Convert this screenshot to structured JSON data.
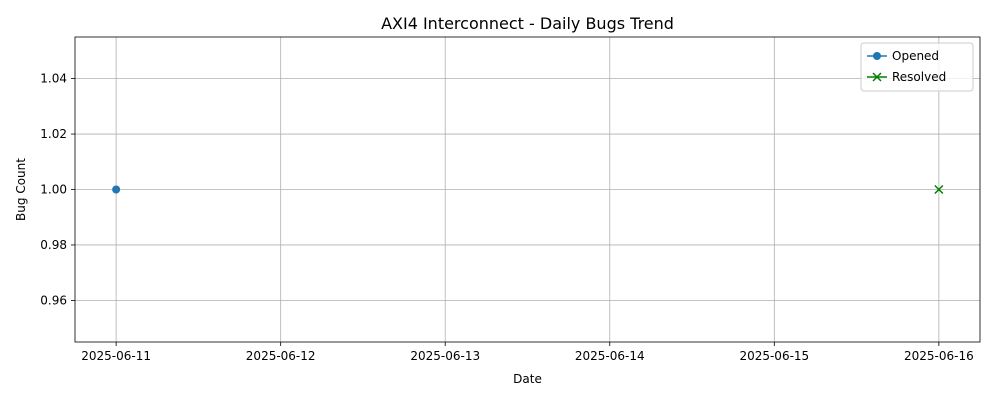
{
  "chart_data": {
    "type": "line",
    "title": "AXI4 Interconnect - Daily Bugs Trend",
    "xlabel": "Date",
    "ylabel": "Bug Count",
    "x_ticks": [
      "2025-06-11",
      "2025-06-12",
      "2025-06-13",
      "2025-06-14",
      "2025-06-15",
      "2025-06-16"
    ],
    "y_ticks": [
      "0.96",
      "0.98",
      "1.00",
      "1.02",
      "1.04"
    ],
    "ylim": [
      0.945,
      1.055
    ],
    "xlim": [
      "2025-06-10T18:00",
      "2025-06-16T06:00"
    ],
    "grid": true,
    "legend_position": "top-right",
    "series": [
      {
        "name": "Opened",
        "color": "#1f77b4",
        "marker": "circle",
        "points": [
          {
            "x": "2025-06-11",
            "y": 1
          }
        ]
      },
      {
        "name": "Resolved",
        "color": "#008000",
        "marker": "x",
        "points": [
          {
            "x": "2025-06-16",
            "y": 1
          }
        ]
      }
    ]
  }
}
